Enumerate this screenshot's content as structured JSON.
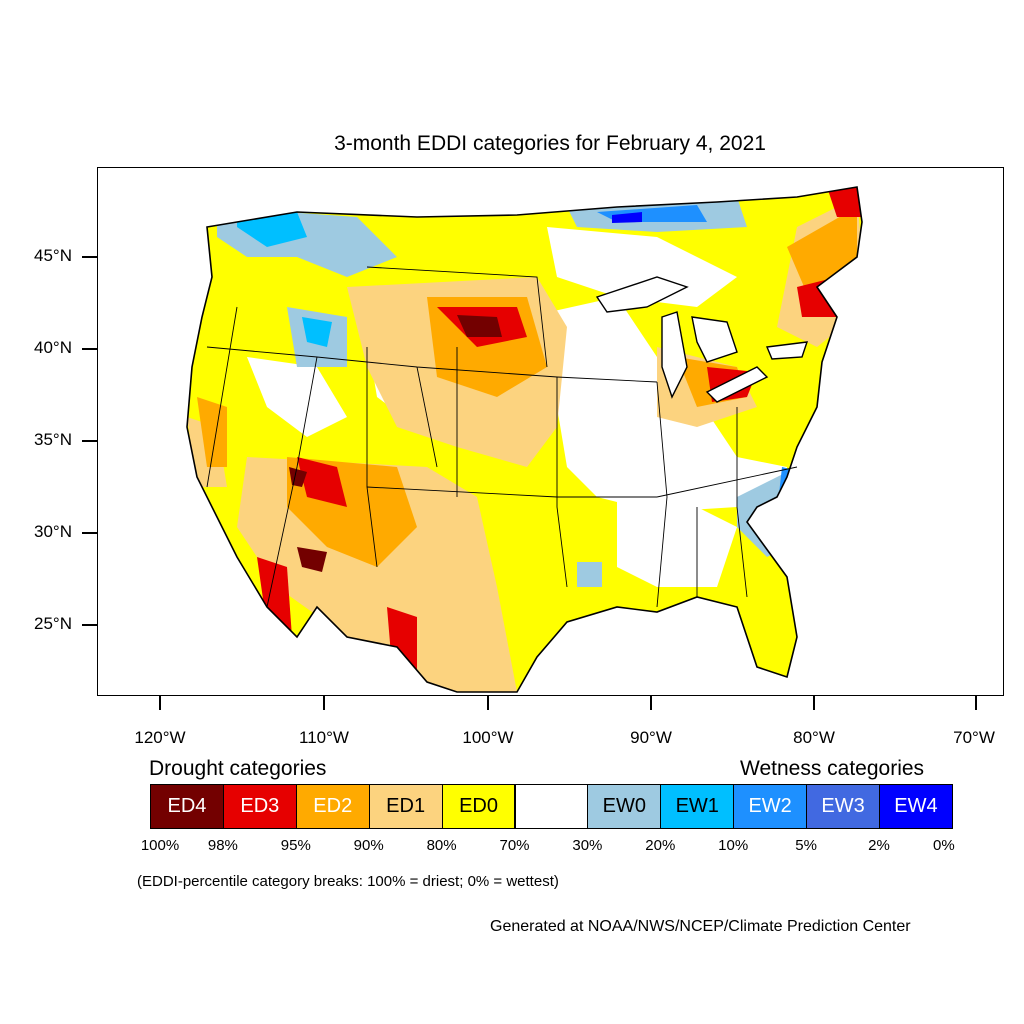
{
  "title": "3-month EDDI categories for February 4, 2021",
  "map": {
    "latitude_labels": [
      "45°N",
      "40°N",
      "35°N",
      "30°N",
      "25°N"
    ],
    "longitude_labels": [
      "120°W",
      "110°W",
      "100°W",
      "90°W",
      "80°W",
      "70°W"
    ]
  },
  "legend": {
    "drought_heading": "Drought categories",
    "wetness_heading": "Wetness categories",
    "categories": [
      {
        "label": "ED4",
        "color": "#730000",
        "text_color": "#ffffff"
      },
      {
        "label": "ED3",
        "color": "#e60000",
        "text_color": "#ffffff"
      },
      {
        "label": "ED2",
        "color": "#ffaa00",
        "text_color": "#ffffff"
      },
      {
        "label": "ED1",
        "color": "#fcd37f",
        "text_color": "#000000"
      },
      {
        "label": "ED0",
        "color": "#ffff00",
        "text_color": "#000000"
      },
      {
        "label": "",
        "color": "#ffffff",
        "text_color": "#000000"
      },
      {
        "label": "EW0",
        "color": "#9ecae1",
        "text_color": "#000000"
      },
      {
        "label": "EW1",
        "color": "#00bfff",
        "text_color": "#000000"
      },
      {
        "label": "EW2",
        "color": "#1e90ff",
        "text_color": "#ffffff"
      },
      {
        "label": "EW3",
        "color": "#4169e1",
        "text_color": "#ffffff"
      },
      {
        "label": "EW4",
        "color": "#0000ff",
        "text_color": "#ffffff"
      }
    ],
    "percentile_breaks": [
      "100%",
      "98%",
      "95%",
      "90%",
      "80%",
      "70%",
      "30%",
      "20%",
      "10%",
      "5%",
      "2%",
      "0%"
    ]
  },
  "note": "(EDDI-percentile category breaks: 100% = driest; 0% = wettest)",
  "credit": "Generated at NOAA/NWS/NCEP/Climate Prediction Center"
}
